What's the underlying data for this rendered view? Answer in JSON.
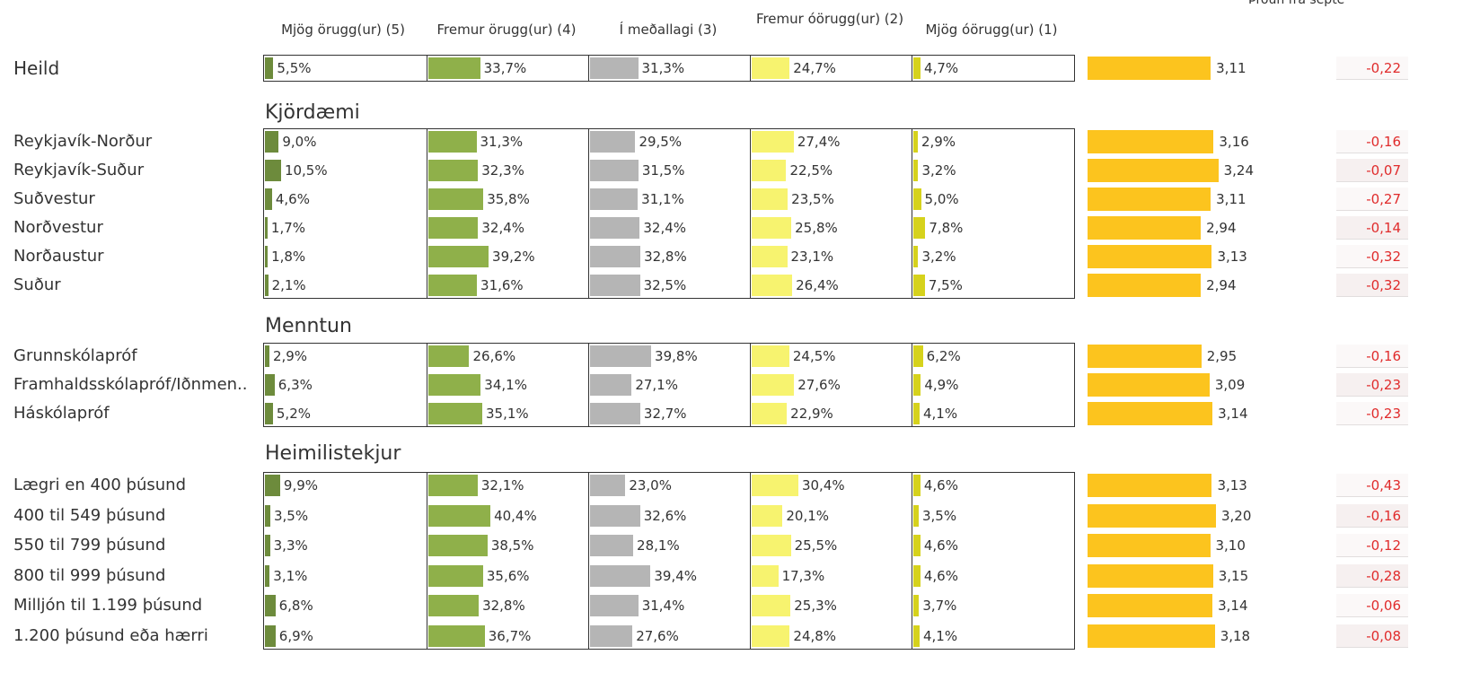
{
  "columns": [
    "Mjög örugg(ur) (5)",
    "Fremur örugg(ur) (4)",
    "Í meðallagi (3)",
    "Fremur óörugg(ur) (2)",
    "Mjög óörugg(ur) (1)"
  ],
  "colors": [
    "#6d8b3c",
    "#8fb04a",
    "#b5b5b5",
    "#f7f36f",
    "#d6d21c"
  ],
  "mean_color": "#fcc41e",
  "change_color": "#e02b2b",
  "xlim": [
    0,
    100
  ],
  "mean_xlim": [
    1,
    5
  ],
  "change_header": "Þróun frá septe",
  "groups": [
    {
      "rows": [
        {
          "label": "Heild",
          "values": [
            5.5,
            33.7,
            31.3,
            24.7,
            4.7
          ],
          "value_labels": [
            "5,5%",
            "33,7%",
            "31,3%",
            "24,7%",
            "4,7%"
          ],
          "mean": 3.11,
          "mean_label": "3,11",
          "change": -0.22,
          "change_label": "-0,22"
        }
      ]
    },
    {
      "title": "Kjördæmi",
      "rows": [
        {
          "label": "Reykjavík-Norður",
          "values": [
            9.0,
            31.3,
            29.5,
            27.4,
            2.9
          ],
          "value_labels": [
            "9,0%",
            "31,3%",
            "29,5%",
            "27,4%",
            "2,9%"
          ],
          "mean": 3.16,
          "mean_label": "3,16",
          "change": -0.16,
          "change_label": "-0,16"
        },
        {
          "label": "Reykjavík-Suður",
          "values": [
            10.5,
            32.3,
            31.5,
            22.5,
            3.2
          ],
          "value_labels": [
            "10,5%",
            "32,3%",
            "31,5%",
            "22,5%",
            "3,2%"
          ],
          "mean": 3.24,
          "mean_label": "3,24",
          "change": -0.07,
          "change_label": "-0,07"
        },
        {
          "label": "Suðvestur",
          "values": [
            4.6,
            35.8,
            31.1,
            23.5,
            5.0
          ],
          "value_labels": [
            "4,6%",
            "35,8%",
            "31,1%",
            "23,5%",
            "5,0%"
          ],
          "mean": 3.11,
          "mean_label": "3,11",
          "change": -0.27,
          "change_label": "-0,27"
        },
        {
          "label": "Norðvestur",
          "values": [
            1.7,
            32.4,
            32.4,
            25.8,
            7.8
          ],
          "value_labels": [
            "1,7%",
            "32,4%",
            "32,4%",
            "25,8%",
            "7,8%"
          ],
          "mean": 2.94,
          "mean_label": "2,94",
          "change": -0.14,
          "change_label": "-0,14"
        },
        {
          "label": "Norðaustur",
          "values": [
            1.8,
            39.2,
            32.8,
            23.1,
            3.2
          ],
          "value_labels": [
            "1,8%",
            "39,2%",
            "32,8%",
            "23,1%",
            "3,2%"
          ],
          "mean": 3.13,
          "mean_label": "3,13",
          "change": -0.32,
          "change_label": "-0,32"
        },
        {
          "label": "Suður",
          "values": [
            2.1,
            31.6,
            32.5,
            26.4,
            7.5
          ],
          "value_labels": [
            "2,1%",
            "31,6%",
            "32,5%",
            "26,4%",
            "7,5%"
          ],
          "mean": 2.94,
          "mean_label": "2,94",
          "change": -0.32,
          "change_label": "-0,32"
        }
      ]
    },
    {
      "title": "Menntun",
      "rows": [
        {
          "label": "Grunnskólapróf",
          "values": [
            2.9,
            26.6,
            39.8,
            24.5,
            6.2
          ],
          "value_labels": [
            "2,9%",
            "26,6%",
            "39,8%",
            "24,5%",
            "6,2%"
          ],
          "mean": 2.95,
          "mean_label": "2,95",
          "change": -0.16,
          "change_label": "-0,16"
        },
        {
          "label": "Framhaldsskólapróf/Iðnmen..",
          "values": [
            6.3,
            34.1,
            27.1,
            27.6,
            4.9
          ],
          "value_labels": [
            "6,3%",
            "34,1%",
            "27,1%",
            "27,6%",
            "4,9%"
          ],
          "mean": 3.09,
          "mean_label": "3,09",
          "change": -0.23,
          "change_label": "-0,23"
        },
        {
          "label": "Háskólapróf",
          "values": [
            5.2,
            35.1,
            32.7,
            22.9,
            4.1
          ],
          "value_labels": [
            "5,2%",
            "35,1%",
            "32,7%",
            "22,9%",
            "4,1%"
          ],
          "mean": 3.14,
          "mean_label": "3,14",
          "change": -0.23,
          "change_label": "-0,23"
        }
      ]
    },
    {
      "title": "Heimilistekjur",
      "rows": [
        {
          "label": "Lægri en 400 þúsund",
          "values": [
            9.9,
            32.1,
            23.0,
            30.4,
            4.6
          ],
          "value_labels": [
            "9,9%",
            "32,1%",
            "23,0%",
            "30,4%",
            "4,6%"
          ],
          "mean": 3.13,
          "mean_label": "3,13",
          "change": -0.43,
          "change_label": "-0,43"
        },
        {
          "label": "400 til 549 þúsund",
          "values": [
            3.5,
            40.4,
            32.6,
            20.1,
            3.5
          ],
          "value_labels": [
            "3,5%",
            "40,4%",
            "32,6%",
            "20,1%",
            "3,5%"
          ],
          "mean": 3.2,
          "mean_label": "3,20",
          "change": -0.16,
          "change_label": "-0,16"
        },
        {
          "label": "550 til 799 þúsund",
          "values": [
            3.3,
            38.5,
            28.1,
            25.5,
            4.6
          ],
          "value_labels": [
            "3,3%",
            "38,5%",
            "28,1%",
            "25,5%",
            "4,6%"
          ],
          "mean": 3.1,
          "mean_label": "3,10",
          "change": -0.12,
          "change_label": "-0,12"
        },
        {
          "label": "800 til 999 þúsund",
          "values": [
            3.1,
            35.6,
            39.4,
            17.3,
            4.6
          ],
          "value_labels": [
            "3,1%",
            "35,6%",
            "39,4%",
            "17,3%",
            "4,6%"
          ],
          "mean": 3.15,
          "mean_label": "3,15",
          "change": -0.28,
          "change_label": "-0,28"
        },
        {
          "label": "Milljón til 1.199 þúsund",
          "values": [
            6.8,
            32.8,
            31.4,
            25.3,
            3.7
          ],
          "value_labels": [
            "6,8%",
            "32,8%",
            "31,4%",
            "25,3%",
            "3,7%"
          ],
          "mean": 3.14,
          "mean_label": "3,14",
          "change": -0.06,
          "change_label": "-0,06"
        },
        {
          "label": "1.200 þúsund eða hærri",
          "values": [
            6.9,
            36.7,
            27.6,
            24.8,
            4.1
          ],
          "value_labels": [
            "6,9%",
            "36,7%",
            "27,6%",
            "24,8%",
            "4,1%"
          ],
          "mean": 3.18,
          "mean_label": "3,18",
          "change": -0.08,
          "change_label": "-0,08"
        }
      ]
    }
  ]
}
